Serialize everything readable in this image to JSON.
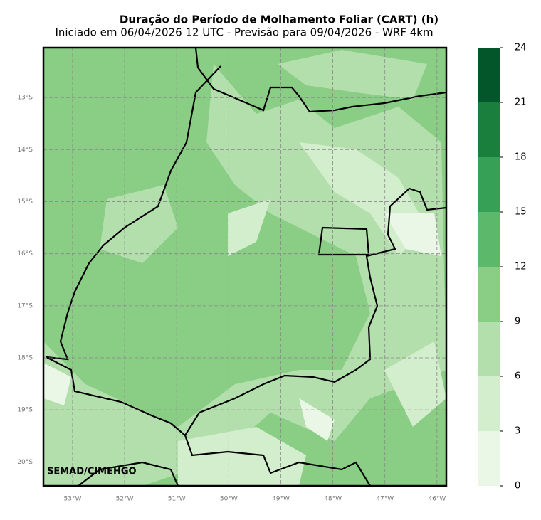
{
  "chart_data": {
    "type": "map",
    "title": "Duração do Período de Molhamento Foliar (CART) (h)",
    "subtitle": "Iniciado em 06/04/2026 12 UTC - Previsão para 09/04/2026 - WRF 4km",
    "credit": "SEMAD/CIMEHGO",
    "xlim": [
      -53.56,
      -45.82
    ],
    "ylim": [
      -20.46,
      -12.04
    ],
    "xticks": [
      {
        "value": -53,
        "label": "53°W"
      },
      {
        "value": -52,
        "label": "52°W"
      },
      {
        "value": -51,
        "label": "51°W"
      },
      {
        "value": -50,
        "label": "50°W"
      },
      {
        "value": -49,
        "label": "49°W"
      },
      {
        "value": -48,
        "label": "48°W"
      },
      {
        "value": -47,
        "label": "47°W"
      },
      {
        "value": -46,
        "label": "46°W"
      }
    ],
    "yticks": [
      {
        "value": -13,
        "label": "13°S"
      },
      {
        "value": -14,
        "label": "14°S"
      },
      {
        "value": -15,
        "label": "15°S"
      },
      {
        "value": -16,
        "label": "16°S"
      },
      {
        "value": -17,
        "label": "17°S"
      },
      {
        "value": -18,
        "label": "18°S"
      },
      {
        "value": -19,
        "label": "19°S"
      },
      {
        "value": -20,
        "label": "20°S"
      }
    ],
    "grid": true,
    "colorbar": {
      "lim": [
        0,
        24
      ],
      "ticks": [
        0,
        3,
        6,
        9,
        12,
        15,
        18,
        21,
        24
      ],
      "colors": [
        "#eaf6e6",
        "#d3eecd",
        "#b2dfab",
        "#8acd85",
        "#5cb96b",
        "#36a057",
        "#1a7e3d",
        "#03562a"
      ]
    }
  }
}
